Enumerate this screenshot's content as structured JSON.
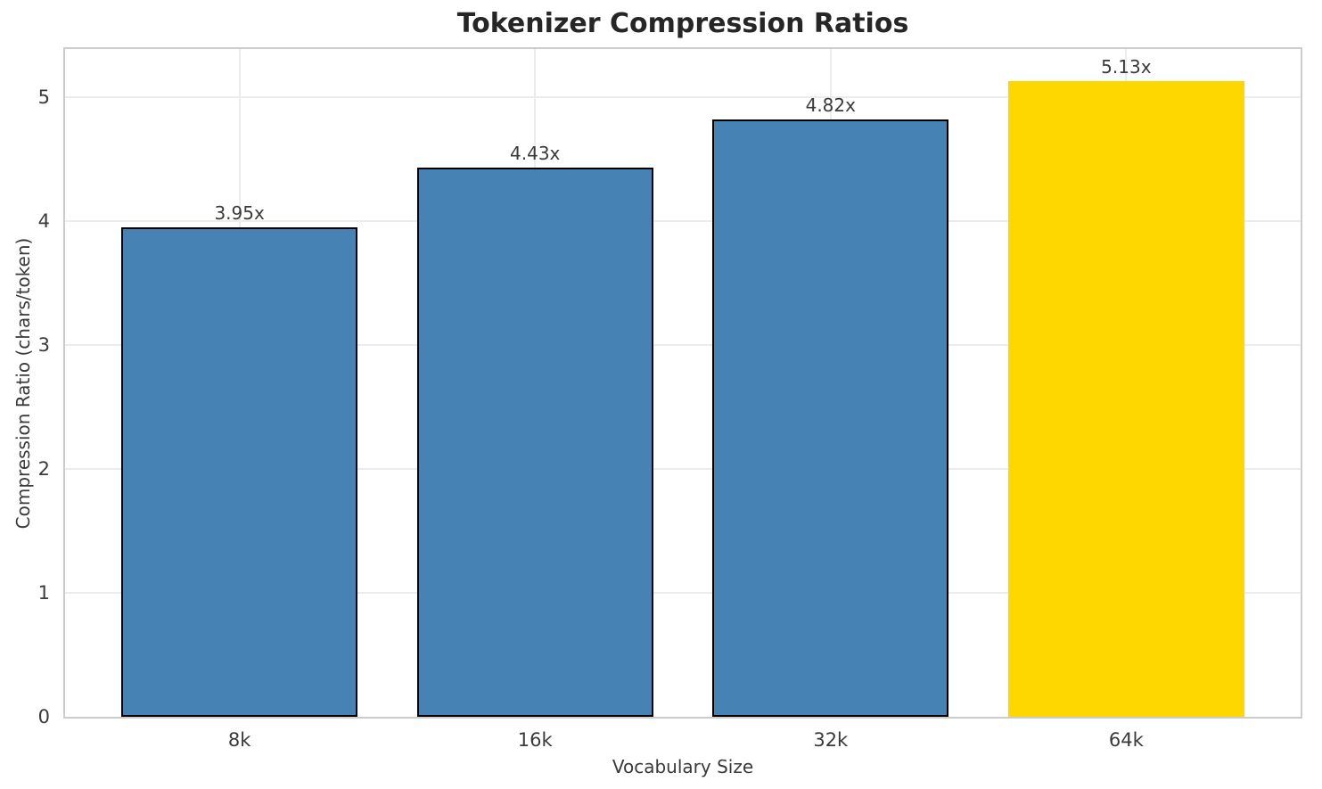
{
  "chart_data": {
    "type": "bar",
    "title": "Tokenizer Compression Ratios",
    "xlabel": "Vocabulary Size",
    "ylabel": "Compression Ratio (chars/token)",
    "categories": [
      "8k",
      "16k",
      "32k",
      "64k"
    ],
    "values": [
      3.95,
      4.43,
      4.82,
      5.13
    ],
    "bar_labels": [
      "3.95x",
      "4.43x",
      "4.82x",
      "5.13x"
    ],
    "bar_colors": [
      "#4682B4",
      "#4682B4",
      "#4682B4",
      "#FFD700"
    ],
    "edge_colors": [
      "#000000",
      "#000000",
      "#000000",
      "none"
    ],
    "highlight_index": 3,
    "yticks": [
      0,
      1,
      2,
      3,
      4,
      5
    ],
    "ytick_labels": [
      "0",
      "1",
      "2",
      "3",
      "4",
      "5"
    ],
    "ylim": [
      0,
      5.39
    ],
    "bar_width_fraction": 0.8,
    "grid": true,
    "legend": "none",
    "colors": {
      "grid": "#ececec",
      "spine": "#cccccc",
      "tick_text": "#3a3a3a",
      "title_text": "#262626",
      "background": "#ffffff"
    }
  }
}
